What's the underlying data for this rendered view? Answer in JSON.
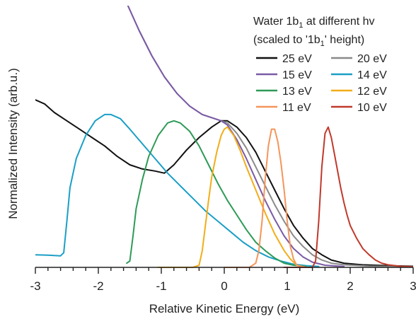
{
  "chart_data": {
    "type": "line",
    "title": "",
    "xlabel": "Relative Kinetic Energy (eV)",
    "ylabel": "Normalized Intensity (arb.u.)",
    "xlim": [
      -3,
      3
    ],
    "ylim": [
      0,
      1.25
    ],
    "x_ticks": [
      -3,
      -2,
      -1,
      0,
      1,
      2,
      3
    ],
    "x_tick_labels": [
      "-3",
      "-2",
      "-1",
      "0",
      "1",
      "2",
      "3"
    ],
    "y_ticks_visible": false,
    "grid": false,
    "legend": {
      "placement": "top-right",
      "columns": 2,
      "title_line1_prefix": "Water 1b",
      "title_line1_sub": "1",
      "title_line1_suffix": " at different hv",
      "title_line2": "(scaled to '1b",
      "title_line2_sub": "1",
      "title_line2_suffix": "' height)"
    },
    "series": [
      {
        "name": "25 eV",
        "color": "#111111",
        "points": [
          [
            -3.0,
            0.8
          ],
          [
            -2.85,
            0.78
          ],
          [
            -2.7,
            0.74
          ],
          [
            -2.5,
            0.7
          ],
          [
            -2.3,
            0.66
          ],
          [
            -2.1,
            0.62
          ],
          [
            -1.9,
            0.58
          ],
          [
            -1.7,
            0.53
          ],
          [
            -1.5,
            0.49
          ],
          [
            -1.3,
            0.47
          ],
          [
            -1.1,
            0.46
          ],
          [
            -0.95,
            0.45
          ],
          [
            -0.8,
            0.49
          ],
          [
            -0.6,
            0.56
          ],
          [
            -0.4,
            0.62
          ],
          [
            -0.2,
            0.67
          ],
          [
            -0.05,
            0.7
          ],
          [
            0.05,
            0.7
          ],
          [
            0.2,
            0.67
          ],
          [
            0.35,
            0.62
          ],
          [
            0.5,
            0.55
          ],
          [
            0.65,
            0.46
          ],
          [
            0.8,
            0.37
          ],
          [
            0.95,
            0.28
          ],
          [
            1.1,
            0.2
          ],
          [
            1.25,
            0.14
          ],
          [
            1.4,
            0.09
          ],
          [
            1.55,
            0.06
          ],
          [
            1.7,
            0.035
          ],
          [
            1.9,
            0.02
          ],
          [
            2.2,
            0.012
          ],
          [
            2.6,
            0.008
          ],
          [
            3.0,
            0.005
          ]
        ]
      },
      {
        "name": "20 eV",
        "color": "#8a8a8a",
        "points": [
          [
            -1.53,
            1.25
          ],
          [
            -1.35,
            1.13
          ],
          [
            -1.15,
            1.01
          ],
          [
            -0.95,
            0.91
          ],
          [
            -0.75,
            0.83
          ],
          [
            -0.55,
            0.77
          ],
          [
            -0.35,
            0.73
          ],
          [
            -0.15,
            0.71
          ],
          [
            -0.05,
            0.7
          ],
          [
            0.05,
            0.69
          ],
          [
            0.2,
            0.64
          ],
          [
            0.35,
            0.57
          ],
          [
            0.5,
            0.48
          ],
          [
            0.65,
            0.39
          ],
          [
            0.8,
            0.3
          ],
          [
            0.95,
            0.22
          ],
          [
            1.1,
            0.15
          ],
          [
            1.25,
            0.1
          ],
          [
            1.4,
            0.06
          ],
          [
            1.55,
            0.035
          ],
          [
            1.7,
            0.02
          ],
          [
            1.9,
            0.012
          ],
          [
            2.3,
            0.006
          ],
          [
            2.8,
            0.003
          ]
        ]
      },
      {
        "name": "15 eV",
        "color": "#7b5aa6",
        "points": [
          [
            -1.53,
            1.25
          ],
          [
            -1.35,
            1.13
          ],
          [
            -1.15,
            1.01
          ],
          [
            -0.95,
            0.91
          ],
          [
            -0.75,
            0.83
          ],
          [
            -0.55,
            0.77
          ],
          [
            -0.35,
            0.73
          ],
          [
            -0.15,
            0.71
          ],
          [
            -0.05,
            0.7
          ],
          [
            0.05,
            0.68
          ],
          [
            0.2,
            0.61
          ],
          [
            0.35,
            0.52
          ],
          [
            0.5,
            0.42
          ],
          [
            0.65,
            0.32
          ],
          [
            0.8,
            0.23
          ],
          [
            0.95,
            0.15
          ],
          [
            1.1,
            0.09
          ],
          [
            1.25,
            0.05
          ],
          [
            1.4,
            0.025
          ],
          [
            1.6,
            0.01
          ],
          [
            1.9,
            0.004
          ]
        ]
      },
      {
        "name": "14 eV",
        "color": "#1b9fc6",
        "points": [
          [
            -3.0,
            0.06
          ],
          [
            -2.8,
            0.058
          ],
          [
            -2.6,
            0.055
          ],
          [
            -2.55,
            0.07
          ],
          [
            -2.5,
            0.22
          ],
          [
            -2.45,
            0.38
          ],
          [
            -2.35,
            0.52
          ],
          [
            -2.2,
            0.63
          ],
          [
            -2.05,
            0.7
          ],
          [
            -1.9,
            0.73
          ],
          [
            -1.8,
            0.73
          ],
          [
            -1.65,
            0.71
          ],
          [
            -1.5,
            0.66
          ],
          [
            -1.3,
            0.59
          ],
          [
            -1.1,
            0.52
          ],
          [
            -0.9,
            0.45
          ],
          [
            -0.7,
            0.39
          ],
          [
            -0.5,
            0.33
          ],
          [
            -0.3,
            0.27
          ],
          [
            -0.1,
            0.22
          ],
          [
            0.1,
            0.17
          ],
          [
            0.3,
            0.12
          ],
          [
            0.5,
            0.08
          ],
          [
            0.7,
            0.05
          ],
          [
            0.9,
            0.03
          ],
          [
            1.1,
            0.015
          ],
          [
            1.3,
            0.008
          ],
          [
            1.5,
            0.004
          ]
        ]
      },
      {
        "name": "13 eV",
        "color": "#2e9a57",
        "points": [
          [
            -1.55,
            0.02
          ],
          [
            -1.5,
            0.03
          ],
          [
            -1.45,
            0.15
          ],
          [
            -1.4,
            0.28
          ],
          [
            -1.3,
            0.42
          ],
          [
            -1.2,
            0.53
          ],
          [
            -1.05,
            0.63
          ],
          [
            -0.9,
            0.69
          ],
          [
            -0.8,
            0.7
          ],
          [
            -0.7,
            0.69
          ],
          [
            -0.55,
            0.65
          ],
          [
            -0.4,
            0.58
          ],
          [
            -0.25,
            0.49
          ],
          [
            -0.1,
            0.4
          ],
          [
            0.05,
            0.32
          ],
          [
            0.2,
            0.25
          ],
          [
            0.35,
            0.18
          ],
          [
            0.5,
            0.12
          ],
          [
            0.65,
            0.08
          ],
          [
            0.8,
            0.045
          ],
          [
            0.95,
            0.02
          ],
          [
            1.1,
            0.01
          ],
          [
            1.3,
            0.004
          ]
        ]
      },
      {
        "name": "12 eV",
        "color": "#f2ad19",
        "points": [
          [
            -1.05,
            0.0
          ],
          [
            -0.5,
            0.0
          ],
          [
            -0.4,
            0.01
          ],
          [
            -0.35,
            0.08
          ],
          [
            -0.3,
            0.2
          ],
          [
            -0.25,
            0.32
          ],
          [
            -0.2,
            0.43
          ],
          [
            -0.12,
            0.55
          ],
          [
            -0.05,
            0.63
          ],
          [
            0.0,
            0.66
          ],
          [
            0.05,
            0.67
          ],
          [
            0.15,
            0.63
          ],
          [
            0.25,
            0.56
          ],
          [
            0.35,
            0.48
          ],
          [
            0.5,
            0.37
          ],
          [
            0.65,
            0.26
          ],
          [
            0.8,
            0.16
          ],
          [
            0.95,
            0.08
          ],
          [
            1.05,
            0.04
          ],
          [
            1.15,
            0.01
          ],
          [
            1.25,
            0.0
          ]
        ]
      },
      {
        "name": "11 eV",
        "color": "#f5955a",
        "points": [
          [
            0.0,
            0.0
          ],
          [
            0.4,
            0.0
          ],
          [
            0.5,
            0.02
          ],
          [
            0.55,
            0.08
          ],
          [
            0.6,
            0.22
          ],
          [
            0.65,
            0.42
          ],
          [
            0.7,
            0.58
          ],
          [
            0.75,
            0.66
          ],
          [
            0.8,
            0.66
          ],
          [
            0.85,
            0.6
          ],
          [
            0.9,
            0.5
          ],
          [
            0.95,
            0.37
          ],
          [
            1.0,
            0.22
          ],
          [
            1.05,
            0.1
          ],
          [
            1.1,
            0.04
          ],
          [
            1.15,
            0.01
          ],
          [
            1.3,
            0.0
          ]
        ]
      },
      {
        "name": "10 eV",
        "color": "#c0392b",
        "points": [
          [
            0.95,
            0.0
          ],
          [
            1.4,
            0.0
          ],
          [
            1.45,
            0.03
          ],
          [
            1.5,
            0.22
          ],
          [
            1.55,
            0.48
          ],
          [
            1.6,
            0.64
          ],
          [
            1.65,
            0.67
          ],
          [
            1.7,
            0.62
          ],
          [
            1.75,
            0.54
          ],
          [
            1.8,
            0.46
          ],
          [
            1.85,
            0.38
          ],
          [
            1.9,
            0.31
          ],
          [
            1.95,
            0.25
          ],
          [
            2.0,
            0.2
          ],
          [
            2.1,
            0.14
          ],
          [
            2.2,
            0.09
          ],
          [
            2.3,
            0.06
          ],
          [
            2.4,
            0.035
          ],
          [
            2.5,
            0.02
          ],
          [
            2.6,
            0.012
          ],
          [
            2.8,
            0.005
          ],
          [
            3.0,
            0.003
          ]
        ]
      }
    ]
  }
}
